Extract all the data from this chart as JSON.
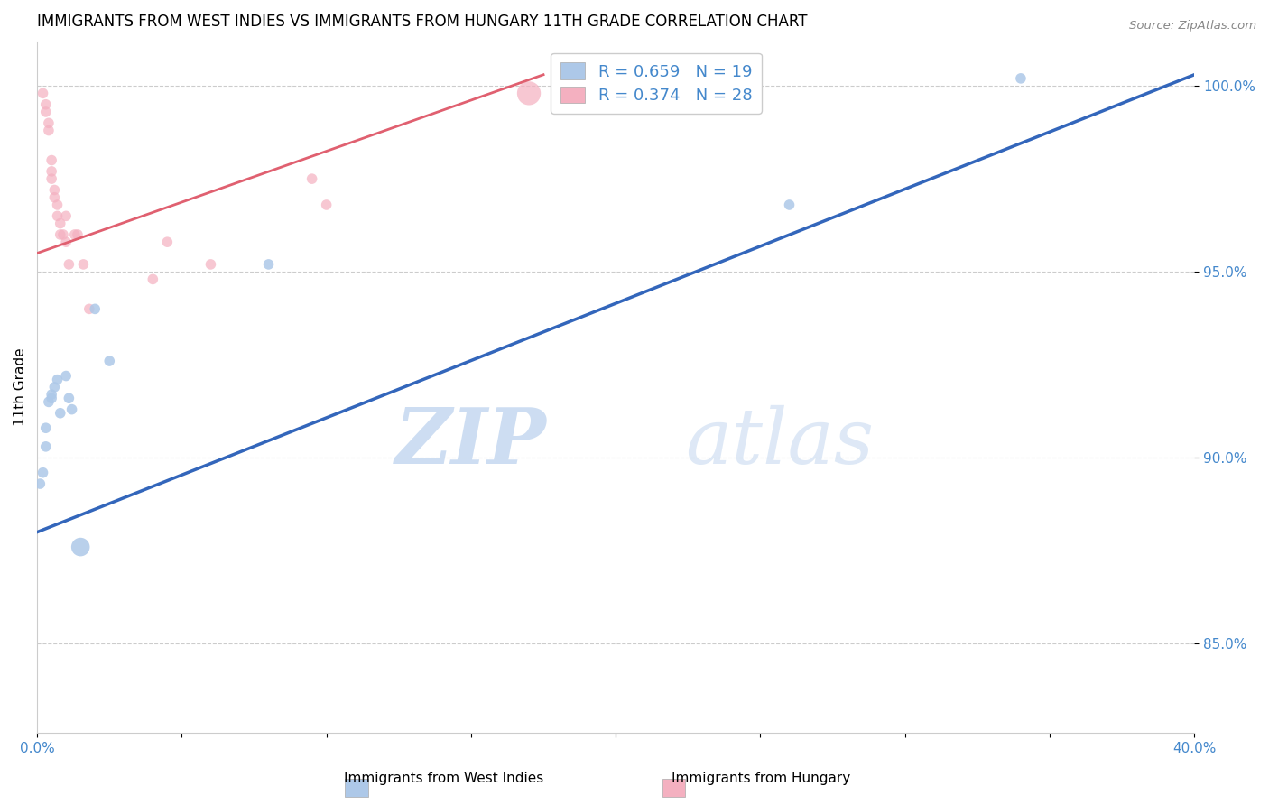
{
  "title": "IMMIGRANTS FROM WEST INDIES VS IMMIGRANTS FROM HUNGARY 11TH GRADE CORRELATION CHART",
  "source_text": "Source: ZipAtlas.com",
  "ylabel": "11th Grade",
  "x_label_bottom": "Immigrants from West Indies",
  "x_label_bottom2": "Immigrants from Hungary",
  "xlim": [
    0.0,
    0.4
  ],
  "ylim": [
    0.826,
    1.012
  ],
  "xticks": [
    0.0,
    0.05,
    0.1,
    0.15,
    0.2,
    0.25,
    0.3,
    0.35,
    0.4
  ],
  "xtick_labels": [
    "0.0%",
    "",
    "",
    "",
    "",
    "",
    "",
    "",
    "40.0%"
  ],
  "yticks": [
    0.85,
    0.9,
    0.95,
    1.0
  ],
  "ytick_labels": [
    "85.0%",
    "90.0%",
    "95.0%",
    "100.0%"
  ],
  "legend_R_blue": "R = 0.659",
  "legend_N_blue": "N = 19",
  "legend_R_pink": "R = 0.374",
  "legend_N_pink": "N = 28",
  "blue_color": "#adc8e8",
  "pink_color": "#f4b0c0",
  "blue_line_color": "#3366bb",
  "pink_line_color": "#e06070",
  "blue_scatter": [
    [
      0.001,
      0.893
    ],
    [
      0.002,
      0.896
    ],
    [
      0.003,
      0.903
    ],
    [
      0.003,
      0.908
    ],
    [
      0.004,
      0.915
    ],
    [
      0.005,
      0.916
    ],
    [
      0.005,
      0.917
    ],
    [
      0.006,
      0.919
    ],
    [
      0.007,
      0.921
    ],
    [
      0.008,
      0.912
    ],
    [
      0.01,
      0.922
    ],
    [
      0.011,
      0.916
    ],
    [
      0.012,
      0.913
    ],
    [
      0.015,
      0.876
    ],
    [
      0.02,
      0.94
    ],
    [
      0.025,
      0.926
    ],
    [
      0.08,
      0.952
    ],
    [
      0.26,
      0.968
    ],
    [
      0.34,
      1.002
    ]
  ],
  "blue_scatter_sizes": [
    70,
    70,
    70,
    70,
    70,
    70,
    70,
    70,
    70,
    70,
    70,
    70,
    70,
    220,
    70,
    70,
    70,
    70,
    70
  ],
  "pink_scatter": [
    [
      0.002,
      0.998
    ],
    [
      0.003,
      0.995
    ],
    [
      0.003,
      0.993
    ],
    [
      0.004,
      0.99
    ],
    [
      0.004,
      0.988
    ],
    [
      0.005,
      0.98
    ],
    [
      0.005,
      0.977
    ],
    [
      0.005,
      0.975
    ],
    [
      0.006,
      0.972
    ],
    [
      0.006,
      0.97
    ],
    [
      0.007,
      0.968
    ],
    [
      0.007,
      0.965
    ],
    [
      0.008,
      0.963
    ],
    [
      0.008,
      0.96
    ],
    [
      0.009,
      0.96
    ],
    [
      0.01,
      0.958
    ],
    [
      0.01,
      0.965
    ],
    [
      0.011,
      0.952
    ],
    [
      0.013,
      0.96
    ],
    [
      0.014,
      0.96
    ],
    [
      0.016,
      0.952
    ],
    [
      0.018,
      0.94
    ],
    [
      0.04,
      0.948
    ],
    [
      0.045,
      0.958
    ],
    [
      0.06,
      0.952
    ],
    [
      0.095,
      0.975
    ],
    [
      0.1,
      0.968
    ],
    [
      0.17,
      0.998
    ]
  ],
  "pink_scatter_sizes": [
    70,
    70,
    70,
    70,
    70,
    70,
    70,
    70,
    70,
    70,
    70,
    70,
    70,
    70,
    70,
    70,
    70,
    70,
    70,
    70,
    70,
    70,
    70,
    70,
    70,
    70,
    70,
    360
  ],
  "blue_line_x": [
    0.0,
    0.4
  ],
  "blue_line_y": [
    0.88,
    1.003
  ],
  "pink_line_x": [
    0.0,
    0.175
  ],
  "pink_line_y": [
    0.955,
    1.003
  ],
  "watermark_zip": "ZIP",
  "watermark_atlas": "atlas",
  "background_color": "#ffffff",
  "grid_color": "#cccccc"
}
